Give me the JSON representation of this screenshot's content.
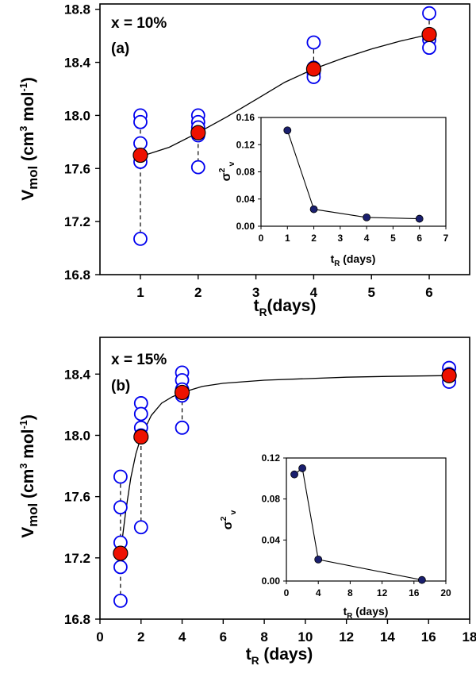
{
  "chart_data": [
    {
      "id": "a",
      "type": "scatter",
      "annotation_line1": "x = 10%",
      "annotation_line2": "(a)",
      "xlabel": {
        "main": "t",
        "sub": "R",
        "rest": "(days)"
      },
      "ylabel": {
        "main": "V",
        "sub": "mol",
        "unit_pre": " (cm",
        "unit_sup": "3",
        "unit_mid": " mol",
        "unit_sup2": "-1",
        "unit_post": ")"
      },
      "x_ticks": [
        "1",
        "2",
        "3",
        "4",
        "5",
        "6"
      ],
      "y_ticks": [
        "16.8",
        "17.2",
        "17.6",
        "18.0",
        "18.4",
        "18.8"
      ],
      "xlim": [
        0.3,
        6.7
      ],
      "ylim": [
        16.8,
        18.84
      ],
      "series": [
        {
          "kind": "individual",
          "color": "#0000ee",
          "points": [
            {
              "x": 1,
              "y": 18.0
            },
            {
              "x": 1,
              "y": 17.95
            },
            {
              "x": 1,
              "y": 17.79
            },
            {
              "x": 1,
              "y": 17.7
            },
            {
              "x": 1,
              "y": 17.65
            },
            {
              "x": 1,
              "y": 17.07
            },
            {
              "x": 2,
              "y": 18.0
            },
            {
              "x": 2,
              "y": 17.95
            },
            {
              "x": 2,
              "y": 17.91
            },
            {
              "x": 2,
              "y": 17.87
            },
            {
              "x": 2,
              "y": 17.85
            },
            {
              "x": 2,
              "y": 17.61
            },
            {
              "x": 4,
              "y": 18.55
            },
            {
              "x": 4,
              "y": 18.36
            },
            {
              "x": 4,
              "y": 18.32
            },
            {
              "x": 4,
              "y": 18.29
            },
            {
              "x": 6,
              "y": 18.77
            },
            {
              "x": 6,
              "y": 18.61
            },
            {
              "x": 6,
              "y": 18.57
            },
            {
              "x": 6,
              "y": 18.51
            }
          ]
        },
        {
          "kind": "mean",
          "color": "#ee1100",
          "points": [
            {
              "x": 1,
              "y": 17.7
            },
            {
              "x": 2,
              "y": 17.87
            },
            {
              "x": 4,
              "y": 18.35
            },
            {
              "x": 6,
              "y": 18.61
            }
          ]
        }
      ],
      "fit_curve": [
        {
          "x": 1.0,
          "y": 17.69
        },
        {
          "x": 1.5,
          "y": 17.76
        },
        {
          "x": 2.0,
          "y": 17.87
        },
        {
          "x": 2.5,
          "y": 17.99
        },
        {
          "x": 3.0,
          "y": 18.12
        },
        {
          "x": 3.5,
          "y": 18.25
        },
        {
          "x": 4.0,
          "y": 18.35
        },
        {
          "x": 4.5,
          "y": 18.43
        },
        {
          "x": 5.0,
          "y": 18.5
        },
        {
          "x": 5.5,
          "y": 18.56
        },
        {
          "x": 6.0,
          "y": 18.61
        }
      ],
      "inset": {
        "type": "line",
        "xlabel": {
          "main": "t",
          "sub": "R",
          "rest": " (days)"
        },
        "ylabel": {
          "main": "σ",
          "sup": "2",
          "sub": "v"
        },
        "x_ticks": [
          "0",
          "1",
          "2",
          "3",
          "4",
          "5",
          "6",
          "7"
        ],
        "y_ticks": [
          "0.00",
          "0.04",
          "0.08",
          "0.12",
          "0.16"
        ],
        "xlim": [
          0,
          7
        ],
        "ylim": [
          0,
          0.16
        ],
        "color": "#1a1f6e",
        "points": [
          {
            "x": 1,
            "y": 0.141
          },
          {
            "x": 2,
            "y": 0.025
          },
          {
            "x": 4,
            "y": 0.013
          },
          {
            "x": 6,
            "y": 0.011
          }
        ]
      }
    },
    {
      "id": "b",
      "type": "scatter",
      "annotation_line1": "x = 15%",
      "annotation_line2": "(b)",
      "xlabel": {
        "main": "t",
        "sub": "R",
        "rest": " (days)"
      },
      "ylabel": {
        "main": "V",
        "sub": "mol",
        "unit_pre": "  (cm",
        "unit_sup": "3",
        "unit_mid": " mol",
        "unit_sup2": "-1",
        "unit_post": ")"
      },
      "x_ticks": [
        "0",
        "2",
        "4",
        "6",
        "8",
        "10",
        "12",
        "14",
        "16",
        "18"
      ],
      "y_ticks": [
        "16.8",
        "17.2",
        "17.6",
        "18.0",
        "18.4"
      ],
      "xlim": [
        0,
        18
      ],
      "ylim": [
        16.8,
        18.64
      ],
      "series": [
        {
          "kind": "individual",
          "color": "#0000ee",
          "points": [
            {
              "x": 1,
              "y": 17.73
            },
            {
              "x": 1,
              "y": 17.53
            },
            {
              "x": 1,
              "y": 17.3
            },
            {
              "x": 1,
              "y": 17.23
            },
            {
              "x": 1,
              "y": 17.14
            },
            {
              "x": 1,
              "y": 16.92
            },
            {
              "x": 2,
              "y": 18.21
            },
            {
              "x": 2,
              "y": 18.14
            },
            {
              "x": 2,
              "y": 18.05
            },
            {
              "x": 2,
              "y": 18.0
            },
            {
              "x": 2,
              "y": 17.4
            },
            {
              "x": 4,
              "y": 18.41
            },
            {
              "x": 4,
              "y": 18.36
            },
            {
              "x": 4,
              "y": 18.3
            },
            {
              "x": 4,
              "y": 18.26
            },
            {
              "x": 4,
              "y": 18.05
            },
            {
              "x": 17,
              "y": 18.44
            },
            {
              "x": 17,
              "y": 18.4
            },
            {
              "x": 17,
              "y": 18.35
            }
          ]
        },
        {
          "kind": "mean",
          "color": "#ee1100",
          "points": [
            {
              "x": 1,
              "y": 17.23
            },
            {
              "x": 2,
              "y": 17.99
            },
            {
              "x": 4,
              "y": 18.28
            },
            {
              "x": 17,
              "y": 18.39
            }
          ]
        }
      ],
      "fit_curve": [
        {
          "x": 1.0,
          "y": 17.23
        },
        {
          "x": 1.25,
          "y": 17.5
        },
        {
          "x": 1.5,
          "y": 17.72
        },
        {
          "x": 1.75,
          "y": 17.88
        },
        {
          "x": 2.0,
          "y": 17.99
        },
        {
          "x": 2.5,
          "y": 18.13
        },
        {
          "x": 3.0,
          "y": 18.21
        },
        {
          "x": 3.5,
          "y": 18.25
        },
        {
          "x": 4.0,
          "y": 18.28
        },
        {
          "x": 5.0,
          "y": 18.32
        },
        {
          "x": 6.0,
          "y": 18.34
        },
        {
          "x": 8.0,
          "y": 18.36
        },
        {
          "x": 10.0,
          "y": 18.37
        },
        {
          "x": 12.0,
          "y": 18.38
        },
        {
          "x": 14.0,
          "y": 18.385
        },
        {
          "x": 17.0,
          "y": 18.39
        }
      ],
      "inset": {
        "type": "line",
        "xlabel": {
          "main": "t",
          "sub": "R",
          "rest": " (days)"
        },
        "ylabel": {
          "main": "σ",
          "sup": "2",
          "sub": "v"
        },
        "x_ticks": [
          "0",
          "4",
          "8",
          "12",
          "16",
          "20"
        ],
        "y_ticks": [
          "0.00",
          "0.04",
          "0.08",
          "0.12"
        ],
        "xlim": [
          0,
          20
        ],
        "ylim": [
          0,
          0.12
        ],
        "color": "#1a1f6e",
        "points": [
          {
            "x": 1,
            "y": 0.104
          },
          {
            "x": 2,
            "y": 0.11
          },
          {
            "x": 4,
            "y": 0.021
          },
          {
            "x": 17,
            "y": 0.001
          }
        ]
      }
    }
  ]
}
